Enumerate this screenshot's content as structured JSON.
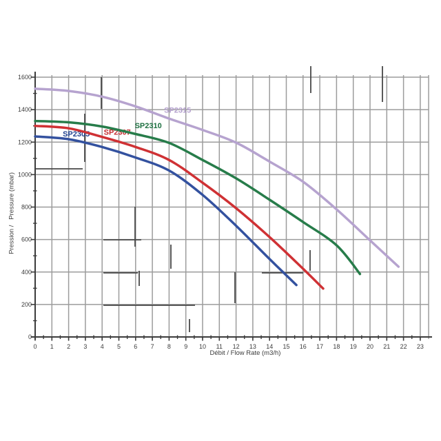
{
  "page": {
    "background": "#ffffff"
  },
  "chart_data": {
    "type": "line",
    "title": "",
    "xlabel": "Débit / Flow Rate (m3/h)",
    "ylabel": "Pression /   Pressure (mbar)",
    "xlim": [
      0,
      23.5
    ],
    "ylim": [
      0,
      1600
    ],
    "x_ticks": [
      0,
      1,
      2,
      3,
      4,
      5,
      6,
      7,
      8,
      9,
      10,
      11,
      12,
      13,
      14,
      15,
      16,
      17,
      18,
      19,
      20,
      21,
      22,
      23
    ],
    "x_minor_tick_step": 0.5,
    "y_ticks": [
      0,
      200,
      400,
      600,
      800,
      1000,
      1200,
      1400,
      1600
    ],
    "y_minor_tick_step": 100,
    "grid": "on",
    "legend": "inline curve labels",
    "axis_color": "#3b3b3b",
    "grid_color": "#9c9c9c",
    "tick_text_color": "#3b3b3b",
    "series": [
      {
        "name": "SP2305",
        "color": "#33519f",
        "label_color": "#20418f",
        "label_at": [
          1.65,
          1252
        ],
        "points": [
          [
            0,
            1235
          ],
          [
            2,
            1218
          ],
          [
            4,
            1170
          ],
          [
            6,
            1105
          ],
          [
            8,
            1025
          ],
          [
            10,
            875
          ],
          [
            12,
            685
          ],
          [
            14,
            480
          ],
          [
            15.6,
            320
          ]
        ]
      },
      {
        "name": "SP2307",
        "color": "#cf3134",
        "label_color": "#c42a2d",
        "label_at": [
          4.1,
          1262
        ],
        "points": [
          [
            0,
            1300
          ],
          [
            2,
            1285
          ],
          [
            4,
            1232
          ],
          [
            6,
            1170
          ],
          [
            8,
            1090
          ],
          [
            10,
            950
          ],
          [
            12,
            793
          ],
          [
            14,
            615
          ],
          [
            16,
            420
          ],
          [
            17.2,
            298
          ]
        ]
      },
      {
        "name": "SP2310",
        "color": "#277c4a",
        "label_color": "#1d7040",
        "label_at": [
          5.95,
          1302
        ],
        "points": [
          [
            0,
            1330
          ],
          [
            2,
            1322
          ],
          [
            4,
            1296
          ],
          [
            6,
            1250
          ],
          [
            8,
            1195
          ],
          [
            10,
            1090
          ],
          [
            12,
            977
          ],
          [
            14,
            845
          ],
          [
            16,
            708
          ],
          [
            18,
            565
          ],
          [
            19.4,
            388
          ]
        ]
      },
      {
        "name": "SP2315",
        "color": "#b6a3cf",
        "label_color": "#b39fcd",
        "label_at": [
          7.7,
          1398
        ],
        "points": [
          [
            0,
            1529
          ],
          [
            2,
            1515
          ],
          [
            4,
            1480
          ],
          [
            6,
            1420
          ],
          [
            8,
            1345
          ],
          [
            10,
            1275
          ],
          [
            12,
            1197
          ],
          [
            14,
            1080
          ],
          [
            16,
            956
          ],
          [
            18,
            786
          ],
          [
            20,
            595
          ],
          [
            21.7,
            433
          ]
        ]
      }
    ]
  }
}
